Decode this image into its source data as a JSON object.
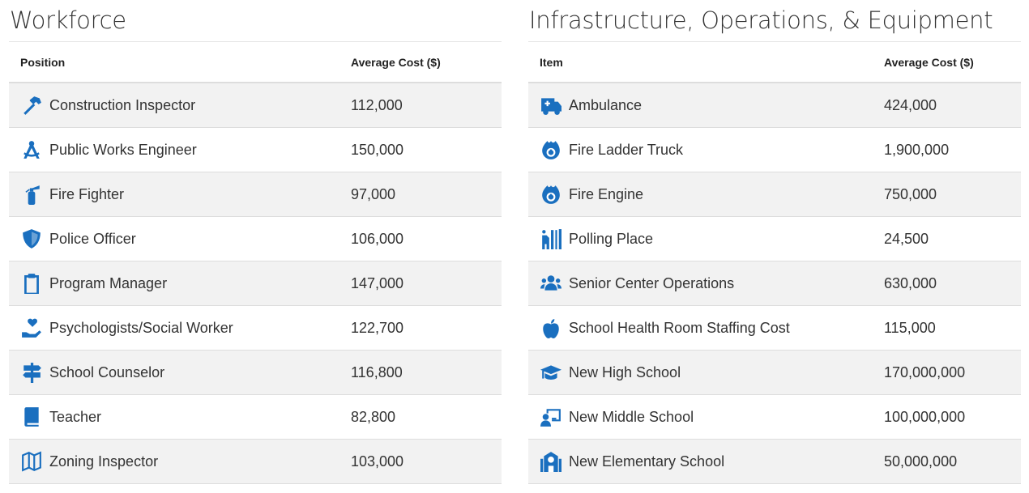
{
  "accent_color": "#1a6fbf",
  "workforce": {
    "title": "Workforce",
    "headers": [
      "Position",
      "Average Cost ($)"
    ],
    "rows": [
      {
        "icon": "hammer-icon",
        "label": "Construction Inspector",
        "cost": "112,000"
      },
      {
        "icon": "compass-drafting-icon",
        "label": "Public Works Engineer",
        "cost": "150,000"
      },
      {
        "icon": "fire-extinguisher-icon",
        "label": "Fire Fighter",
        "cost": "97,000"
      },
      {
        "icon": "shield-icon",
        "label": "Police Officer",
        "cost": "106,000"
      },
      {
        "icon": "clipboard-icon",
        "label": "Program Manager",
        "cost": "147,000"
      },
      {
        "icon": "hand-holding-heart-icon",
        "label": "Psychologists/Social Worker",
        "cost": "122,700"
      },
      {
        "icon": "signpost-icon",
        "label": "School Counselor",
        "cost": "116,800"
      },
      {
        "icon": "book-icon",
        "label": "Teacher",
        "cost": "82,800"
      },
      {
        "icon": "map-icon",
        "label": "Zoning Inspector",
        "cost": "103,000"
      }
    ]
  },
  "infrastructure": {
    "title": "Infrastructure, Operations, & Equipment",
    "headers": [
      "Item",
      "Average Cost ($)"
    ],
    "rows": [
      {
        "icon": "ambulance-icon",
        "label": "Ambulance",
        "cost": "424,000"
      },
      {
        "icon": "fire-icon",
        "label": "Fire Ladder Truck",
        "cost": "1,900,000"
      },
      {
        "icon": "fire-icon",
        "label": "Fire Engine",
        "cost": "750,000"
      },
      {
        "icon": "person-booth-icon",
        "label": "Polling Place",
        "cost": "24,500"
      },
      {
        "icon": "users-icon",
        "label": "Senior Center Operations",
        "cost": "630,000"
      },
      {
        "icon": "apple-icon",
        "label": "School Health Room Staffing Cost",
        "cost": "115,000"
      },
      {
        "icon": "graduation-cap-icon",
        "label": "New High School",
        "cost": "170,000,000"
      },
      {
        "icon": "chalkboard-teacher-icon",
        "label": "New Middle School",
        "cost": "100,000,000"
      },
      {
        "icon": "school-icon",
        "label": "New Elementary School",
        "cost": "50,000,000"
      }
    ]
  }
}
